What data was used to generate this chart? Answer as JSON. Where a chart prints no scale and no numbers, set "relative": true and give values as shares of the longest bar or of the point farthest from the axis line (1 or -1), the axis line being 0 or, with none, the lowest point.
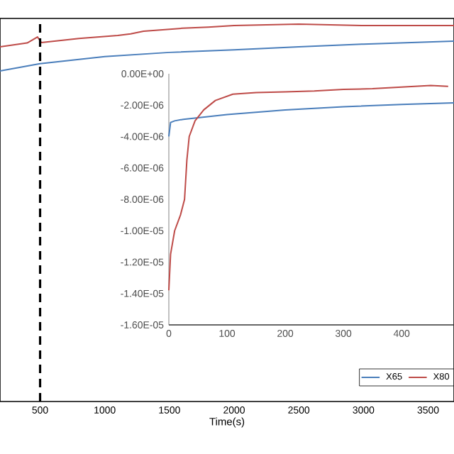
{
  "chart_data": [
    {
      "type": "line",
      "relative": true,
      "xlabel": "Time(s)",
      "xlim": [
        190,
        3700
      ],
      "xticks": [
        500,
        1000,
        1500,
        2000,
        2500,
        3000,
        3500
      ],
      "tick_labels": "x",
      "marker": "none",
      "line_style": "solid",
      "legend": "bottom right",
      "series": [
        {
          "name": "X65",
          "color": "#4a7ebb",
          "x": [
            190,
            500,
            1000,
            1500,
            2000,
            2500,
            3000,
            3700
          ],
          "values": [
            0.876,
            0.895,
            0.914,
            0.925,
            0.932,
            0.94,
            0.947,
            0.955
          ]
        },
        {
          "name": "X80",
          "color": "#be4b48",
          "x": [
            190,
            400,
            480,
            510,
            800,
            1100,
            1200,
            1300,
            1600,
            1800,
            2000,
            2500,
            3000,
            3700
          ],
          "values": [
            0.94,
            0.95,
            0.966,
            0.951,
            0.962,
            0.97,
            0.974,
            0.981,
            0.989,
            0.992,
            0.996,
            1.0,
            0.996,
            0.996
          ]
        }
      ],
      "ref_lines": [
        {
          "axis": "x",
          "value": 500,
          "color": "#000000",
          "line_style": "dashed"
        }
      ]
    },
    {
      "type": "line",
      "xlim": [
        0,
        490
      ],
      "xticks": [
        0,
        100,
        200,
        300,
        400
      ],
      "ylim": [
        -1.6e-05,
        0
      ],
      "marker": "none",
      "line_style": "solid",
      "yticks": [
        {
          "value": 0,
          "label": "0.00E+00"
        },
        {
          "value": -2e-06,
          "label": "-2.00E-06"
        },
        {
          "value": -4e-06,
          "label": "-4.00E-06"
        },
        {
          "value": -6e-06,
          "label": "-6.00E-06"
        },
        {
          "value": -8e-06,
          "label": "-8.00E-06"
        },
        {
          "value": -1e-05,
          "label": "-1.00E-05"
        },
        {
          "value": -1.2e-05,
          "label": "-1.20E-05"
        },
        {
          "value": -1.4e-05,
          "label": "-1.40E-05"
        },
        {
          "value": -1.6e-05,
          "label": "-1.60E-05"
        }
      ],
      "series": [
        {
          "color": "#4a7ebb",
          "x": [
            0,
            3,
            10,
            25,
            50,
            100,
            200,
            300,
            400,
            490
          ],
          "values": [
            -4e-06,
            -3.1e-06,
            -3e-06,
            -2.9e-06,
            -2.8e-06,
            -2.6e-06,
            -2.3e-06,
            -2.1e-06,
            -1.95e-06,
            -1.85e-06
          ]
        },
        {
          "color": "#be4b48",
          "x": [
            0,
            3,
            10,
            20,
            27,
            31,
            35,
            45,
            60,
            80,
            110,
            150,
            200,
            250,
            300,
            350,
            400,
            450,
            480
          ],
          "values": [
            -1.38e-05,
            -1.15e-05,
            -1e-05,
            -9e-06,
            -8e-06,
            -5.5e-06,
            -4e-06,
            -3e-06,
            -2.3e-06,
            -1.7e-06,
            -1.3e-06,
            -1.2e-06,
            -1.15e-06,
            -1.1e-06,
            -1e-06,
            -9.5e-07,
            -8.5e-07,
            -7.5e-07,
            -8e-07
          ]
        }
      ]
    }
  ]
}
